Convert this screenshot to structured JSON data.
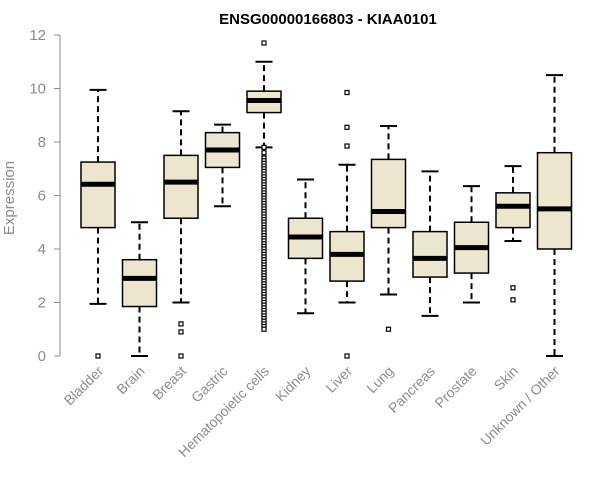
{
  "chart_data": {
    "type": "boxplot",
    "title": "ENSG00000166803 - KIAA0101",
    "xlabel": "",
    "ylabel": "Expression",
    "ylim": [
      0,
      12
    ],
    "yticks": [
      0,
      2,
      4,
      6,
      8,
      10,
      12
    ],
    "box_fill": "#ede6cf",
    "box_stroke": "#000000",
    "axis_color": "#8c8c8c",
    "categories": [
      "Bladder",
      "Brain",
      "Breast",
      "Gastric",
      "Hematopoietic cells",
      "Kidney",
      "Liver",
      "Lung",
      "Pancreas",
      "Prostate",
      "Skin",
      "Unknown / Other"
    ],
    "boxes": [
      {
        "whislo": 1.95,
        "q1": 4.8,
        "med": 6.42,
        "q3": 7.25,
        "whishi": 9.95,
        "fliers": [
          0.0
        ]
      },
      {
        "whislo": 0.0,
        "q1": 1.85,
        "med": 2.9,
        "q3": 3.6,
        "whishi": 5.0,
        "fliers": []
      },
      {
        "whislo": 2.0,
        "q1": 5.15,
        "med": 6.5,
        "q3": 7.5,
        "whishi": 9.15,
        "fliers": [
          0.0,
          0.9,
          1.2
        ]
      },
      {
        "whislo": 5.6,
        "q1": 7.05,
        "med": 7.7,
        "q3": 8.35,
        "whishi": 8.65,
        "fliers": []
      },
      {
        "whislo": 7.8,
        "q1": 9.1,
        "med": 9.55,
        "q3": 9.9,
        "whishi": 11.0,
        "fliers": [
          11.7,
          7.8,
          7.6,
          7.4,
          7.3,
          7.2,
          7.1,
          7.0,
          6.9,
          6.8,
          6.7,
          6.6,
          6.5,
          6.4,
          6.3,
          6.2,
          6.1,
          6.0,
          5.9,
          5.8,
          5.7,
          5.6,
          5.5,
          5.4,
          5.3,
          5.2,
          5.1,
          5.0,
          4.9,
          4.8,
          4.7,
          4.6,
          4.5,
          4.4,
          4.3,
          4.2,
          4.1,
          4.0,
          3.9,
          3.8,
          3.7,
          3.6,
          3.5,
          3.4,
          3.3,
          3.2,
          3.1,
          3.0,
          2.9,
          2.8,
          2.7,
          2.6,
          2.5,
          2.4,
          2.3,
          2.2,
          2.1,
          2.0,
          1.9,
          1.8,
          1.7,
          1.6,
          1.5,
          1.4,
          1.3,
          1.2,
          1.1,
          1.0
        ]
      },
      {
        "whislo": 1.6,
        "q1": 3.65,
        "med": 4.45,
        "q3": 5.15,
        "whishi": 6.6,
        "fliers": []
      },
      {
        "whislo": 2.0,
        "q1": 2.8,
        "med": 3.8,
        "q3": 4.65,
        "whishi": 7.15,
        "fliers": [
          9.85,
          8.55,
          7.85,
          0.0
        ]
      },
      {
        "whislo": 2.3,
        "q1": 4.8,
        "med": 5.4,
        "q3": 7.35,
        "whishi": 8.6,
        "fliers": [
          1.0
        ]
      },
      {
        "whislo": 1.5,
        "q1": 2.95,
        "med": 3.65,
        "q3": 4.65,
        "whishi": 6.9,
        "fliers": []
      },
      {
        "whislo": 2.0,
        "q1": 3.1,
        "med": 4.05,
        "q3": 5.0,
        "whishi": 6.35,
        "fliers": []
      },
      {
        "whislo": 4.3,
        "q1": 4.8,
        "med": 5.6,
        "q3": 6.1,
        "whishi": 7.1,
        "fliers": [
          2.55,
          2.1
        ]
      },
      {
        "whislo": 0.0,
        "q1": 4.0,
        "med": 5.5,
        "q3": 7.6,
        "whishi": 10.5,
        "fliers": []
      }
    ]
  }
}
